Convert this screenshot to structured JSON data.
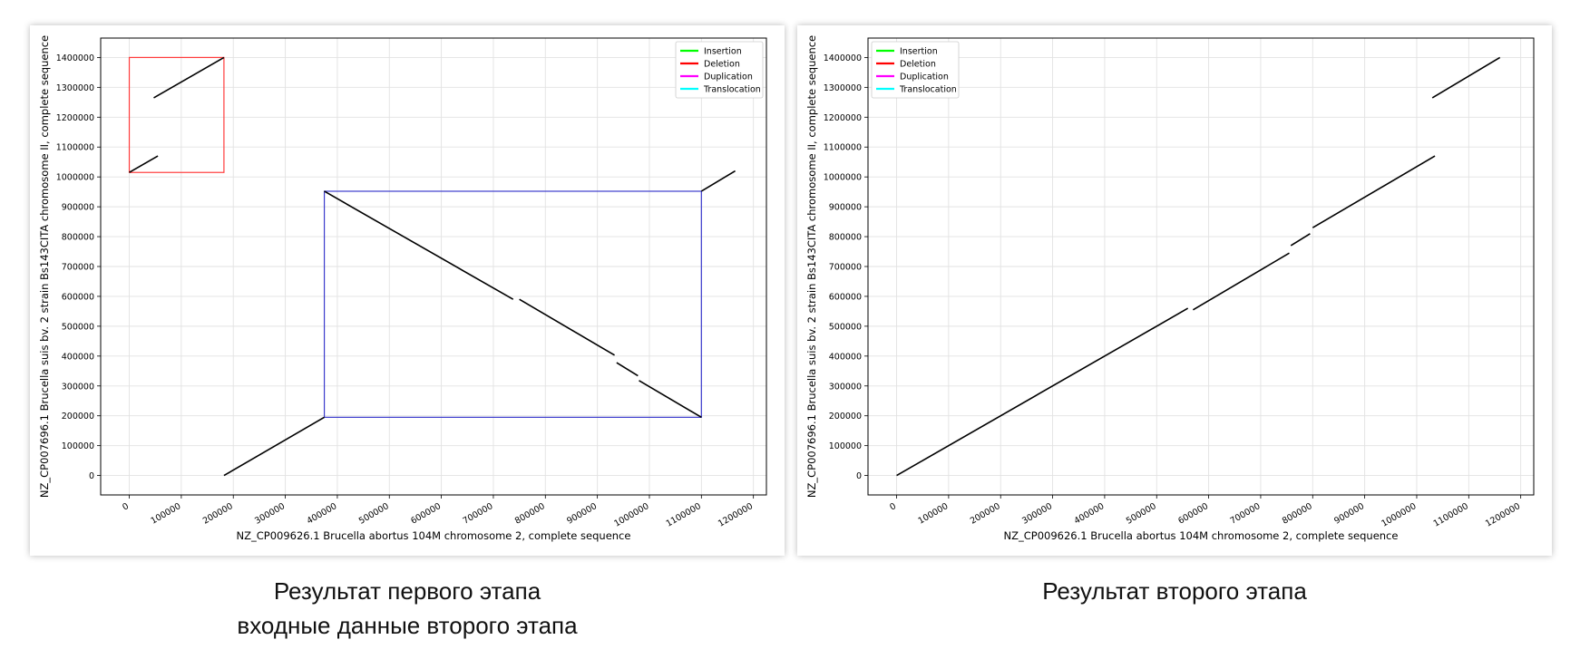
{
  "chart_data": [
    {
      "type": "line",
      "title": "",
      "xlabel": "NZ_CP009626.1 Brucella abortus 104M chromosome 2, complete sequence",
      "ylabel": "NZ_CP007696.1 Brucella suis bv. 2 strain Bs143CITA chromosome II, complete sequence",
      "xlim": [
        -55000,
        1225000
      ],
      "ylim": [
        -65000,
        1465000
      ],
      "xticks": [
        0,
        100000,
        200000,
        300000,
        400000,
        500000,
        600000,
        700000,
        800000,
        900000,
        1000000,
        1100000,
        1200000
      ],
      "yticks": [
        0,
        100000,
        200000,
        300000,
        400000,
        500000,
        600000,
        700000,
        800000,
        900000,
        1000000,
        1100000,
        1200000,
        1300000,
        1400000
      ],
      "grid": true,
      "legend_position": "top-right",
      "legend": [
        {
          "label": "Insertion",
          "color": "#00ff00"
        },
        {
          "label": "Deletion",
          "color": "#ff0000"
        },
        {
          "label": "Duplication",
          "color": "#ff00ff"
        },
        {
          "label": "Translocation",
          "color": "#00ffff"
        }
      ],
      "segments": [
        {
          "x": [
            0,
            55000
          ],
          "y": [
            1015000,
            1070000
          ]
        },
        {
          "x": [
            47000,
            182000
          ],
          "y": [
            1265000,
            1400000
          ]
        },
        {
          "x": [
            182000,
            375000
          ],
          "y": [
            0,
            195000
          ]
        },
        {
          "x": [
            375000,
            738000
          ],
          "y": [
            952000,
            590000
          ]
        },
        {
          "x": [
            750000,
            933000
          ],
          "y": [
            590000,
            403000
          ]
        },
        {
          "x": [
            937000,
            978000
          ],
          "y": [
            378000,
            334000
          ]
        },
        {
          "x": [
            980000,
            1100000
          ],
          "y": [
            318000,
            195000
          ]
        },
        {
          "x": [
            1100000,
            1165000
          ],
          "y": [
            952000,
            1020000
          ]
        }
      ],
      "boxes": [
        {
          "x": [
            0,
            182000
          ],
          "y": [
            1015000,
            1400000
          ],
          "color": "#ff3b3b"
        },
        {
          "x": [
            375000,
            1100000
          ],
          "y": [
            195000,
            952000
          ],
          "color": "#3a3acc"
        }
      ]
    },
    {
      "type": "line",
      "title": "",
      "xlabel": "NZ_CP009626.1 Brucella abortus 104M chromosome 2, complete sequence",
      "ylabel": "NZ_CP007696.1 Brucella suis bv. 2 strain Bs143CITA chromosome II, complete sequence",
      "xlim": [
        -55000,
        1225000
      ],
      "ylim": [
        -65000,
        1465000
      ],
      "xticks": [
        0,
        100000,
        200000,
        300000,
        400000,
        500000,
        600000,
        700000,
        800000,
        900000,
        1000000,
        1100000,
        1200000
      ],
      "yticks": [
        0,
        100000,
        200000,
        300000,
        400000,
        500000,
        600000,
        700000,
        800000,
        900000,
        1000000,
        1100000,
        1200000,
        1300000,
        1400000
      ],
      "grid": true,
      "legend_position": "top-left",
      "legend": [
        {
          "label": "Insertion",
          "color": "#00ff00"
        },
        {
          "label": "Deletion",
          "color": "#ff0000"
        },
        {
          "label": "Duplication",
          "color": "#ff00ff"
        },
        {
          "label": "Translocation",
          "color": "#00ffff"
        }
      ],
      "segments": [
        {
          "x": [
            0,
            560000
          ],
          "y": [
            0,
            560000
          ]
        },
        {
          "x": [
            570000,
            755000
          ],
          "y": [
            555000,
            745000
          ]
        },
        {
          "x": [
            758000,
            795000
          ],
          "y": [
            770000,
            810000
          ]
        },
        {
          "x": [
            800000,
            1035000
          ],
          "y": [
            830000,
            1070000
          ]
        },
        {
          "x": [
            1030000,
            1160000
          ],
          "y": [
            1265000,
            1400000
          ]
        }
      ],
      "boxes": []
    }
  ],
  "captions": [
    [
      "Результат первого этапа",
      "входные данные второго этапа"
    ],
    [
      "Результат второго этапа"
    ]
  ]
}
